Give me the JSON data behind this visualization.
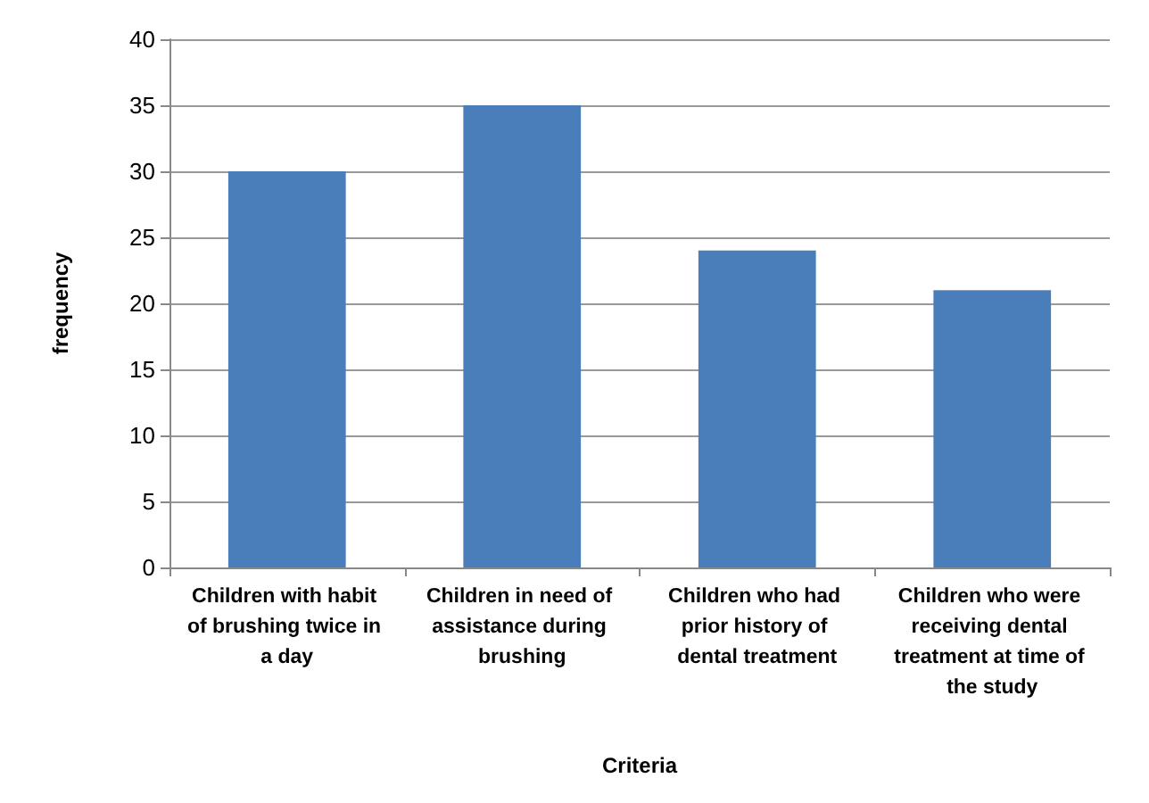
{
  "chart_data": {
    "type": "bar",
    "xlabel": "Criteria",
    "ylabel": "frequency",
    "categories": [
      "Children with habit of brushing twice in a day",
      "Children in need of assistance during brushing",
      "Children who had prior history of dental treatment",
      "Children who were receiving dental treatment at time of the study"
    ],
    "values": [
      30,
      35,
      24,
      21
    ],
    "color": "#4a7ebb",
    "ylim": [
      0,
      40
    ],
    "yticks": [
      0,
      5,
      10,
      15,
      20,
      25,
      30,
      35,
      40
    ],
    "grid": "y"
  }
}
